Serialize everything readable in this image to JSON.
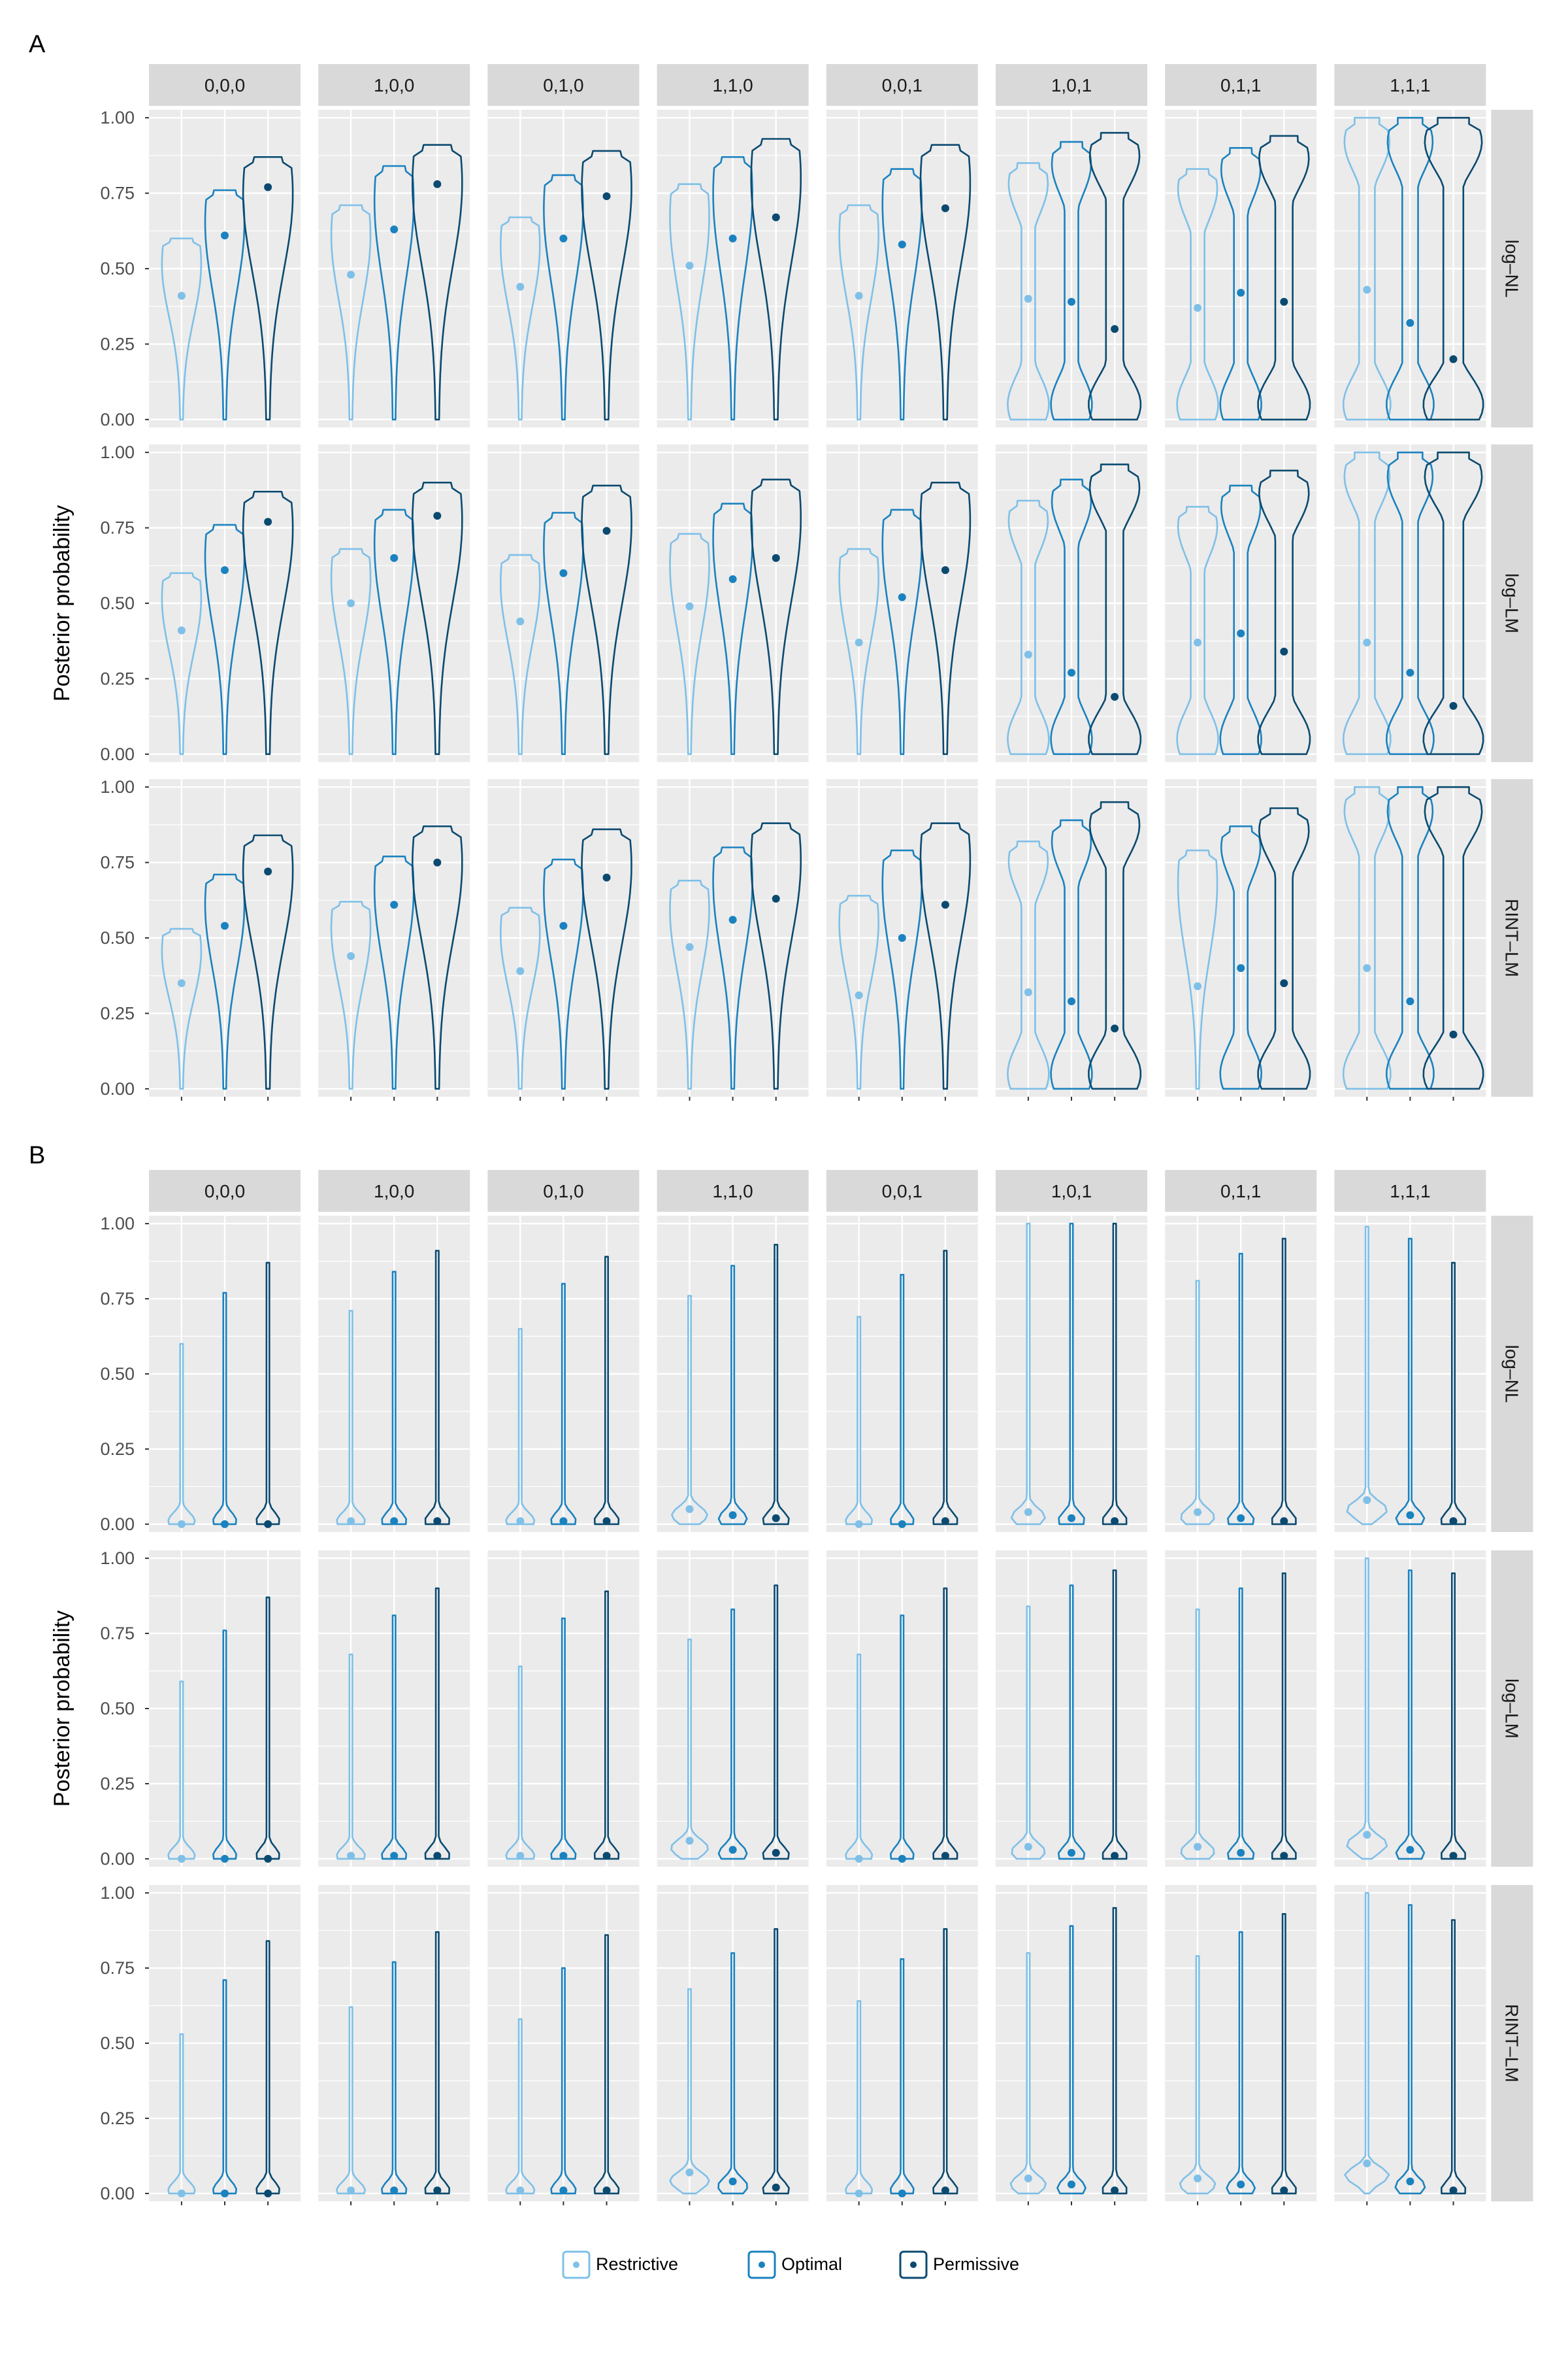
{
  "chart_data": [
    {
      "type": "violin",
      "panel": "A",
      "ylabel": "Posterior probability",
      "ylim": [
        0,
        1
      ],
      "yticks": [
        "0.00",
        "0.25",
        "0.50",
        "0.75",
        "1.00"
      ],
      "columns": [
        "0,0,0",
        "1,0,0",
        "0,1,0",
        "1,1,0",
        "0,0,1",
        "1,0,1",
        "0,1,1",
        "1,1,1"
      ],
      "rows": [
        "log–NL",
        "log–LM",
        "RINT–LM"
      ],
      "groups": [
        "Restrictive",
        "Optimal",
        "Permissive"
      ],
      "median": [
        [
          [
            0.41,
            0.61,
            0.77
          ],
          [
            0.48,
            0.63,
            0.78
          ],
          [
            0.44,
            0.6,
            0.74
          ],
          [
            0.51,
            0.6,
            0.67
          ],
          [
            0.41,
            0.58,
            0.7
          ],
          [
            0.4,
            0.39,
            0.3
          ],
          [
            0.37,
            0.42,
            0.39
          ],
          [
            0.43,
            0.32,
            0.2
          ]
        ],
        [
          [
            0.41,
            0.61,
            0.77
          ],
          [
            0.5,
            0.65,
            0.79
          ],
          [
            0.44,
            0.6,
            0.74
          ],
          [
            0.49,
            0.58,
            0.65
          ],
          [
            0.37,
            0.52,
            0.61
          ],
          [
            0.33,
            0.27,
            0.19
          ],
          [
            0.37,
            0.4,
            0.34
          ],
          [
            0.37,
            0.27,
            0.16
          ]
        ],
        [
          [
            0.35,
            0.54,
            0.72
          ],
          [
            0.44,
            0.61,
            0.75
          ],
          [
            0.39,
            0.54,
            0.7
          ],
          [
            0.47,
            0.56,
            0.63
          ],
          [
            0.31,
            0.5,
            0.61
          ],
          [
            0.32,
            0.29,
            0.2
          ],
          [
            0.34,
            0.4,
            0.35
          ],
          [
            0.4,
            0.29,
            0.18
          ]
        ]
      ],
      "max": [
        [
          [
            0.6,
            0.76,
            0.87
          ],
          [
            0.71,
            0.84,
            0.91
          ],
          [
            0.67,
            0.81,
            0.89
          ],
          [
            0.78,
            0.87,
            0.93
          ],
          [
            0.71,
            0.83,
            0.91
          ],
          [
            0.85,
            0.92,
            0.95
          ],
          [
            0.83,
            0.9,
            0.94
          ],
          [
            1.0,
            1.0,
            1.0
          ]
        ],
        [
          [
            0.6,
            0.76,
            0.87
          ],
          [
            0.68,
            0.81,
            0.9
          ],
          [
            0.66,
            0.8,
            0.89
          ],
          [
            0.73,
            0.83,
            0.91
          ],
          [
            0.68,
            0.81,
            0.9
          ],
          [
            0.84,
            0.91,
            0.96
          ],
          [
            0.82,
            0.89,
            0.94
          ],
          [
            1.0,
            1.0,
            1.0
          ]
        ],
        [
          [
            0.53,
            0.71,
            0.84
          ],
          [
            0.62,
            0.77,
            0.87
          ],
          [
            0.6,
            0.76,
            0.86
          ],
          [
            0.69,
            0.8,
            0.88
          ],
          [
            0.64,
            0.79,
            0.88
          ],
          [
            0.82,
            0.89,
            0.95
          ],
          [
            0.79,
            0.87,
            0.93
          ],
          [
            1.0,
            1.0,
            1.0
          ]
        ]
      ]
    },
    {
      "type": "violin",
      "panel": "B",
      "ylabel": "Posterior probability",
      "ylim": [
        0,
        1
      ],
      "yticks": [
        "0.00",
        "0.25",
        "0.50",
        "0.75",
        "1.00"
      ],
      "columns": [
        "0,0,0",
        "1,0,0",
        "0,1,0",
        "1,1,0",
        "0,0,1",
        "1,0,1",
        "0,1,1",
        "1,1,1"
      ],
      "rows": [
        "log–NL",
        "log–LM",
        "RINT–LM"
      ],
      "groups": [
        "Restrictive",
        "Optimal",
        "Permissive"
      ],
      "median": [
        [
          [
            0.0,
            0.0,
            0.0
          ],
          [
            0.01,
            0.01,
            0.01
          ],
          [
            0.01,
            0.01,
            0.01
          ],
          [
            0.05,
            0.03,
            0.02
          ],
          [
            0.0,
            0.0,
            0.01
          ],
          [
            0.04,
            0.02,
            0.01
          ],
          [
            0.04,
            0.02,
            0.01
          ],
          [
            0.08,
            0.03,
            0.01
          ]
        ],
        [
          [
            0.0,
            0.0,
            0.0
          ],
          [
            0.01,
            0.01,
            0.01
          ],
          [
            0.01,
            0.01,
            0.01
          ],
          [
            0.06,
            0.03,
            0.02
          ],
          [
            0.0,
            0.0,
            0.01
          ],
          [
            0.04,
            0.02,
            0.01
          ],
          [
            0.04,
            0.02,
            0.01
          ],
          [
            0.08,
            0.03,
            0.01
          ]
        ],
        [
          [
            0.0,
            0.0,
            0.0
          ],
          [
            0.01,
            0.01,
            0.01
          ],
          [
            0.01,
            0.01,
            0.01
          ],
          [
            0.07,
            0.04,
            0.02
          ],
          [
            0.0,
            0.0,
            0.01
          ],
          [
            0.05,
            0.03,
            0.01
          ],
          [
            0.05,
            0.03,
            0.01
          ],
          [
            0.1,
            0.04,
            0.01
          ]
        ]
      ],
      "max": [
        [
          [
            0.6,
            0.77,
            0.87
          ],
          [
            0.71,
            0.84,
            0.91
          ],
          [
            0.65,
            0.8,
            0.89
          ],
          [
            0.76,
            0.86,
            0.93
          ],
          [
            0.69,
            0.83,
            0.91
          ],
          [
            1.0,
            1.0,
            1.0
          ],
          [
            0.81,
            0.9,
            0.95
          ],
          [
            0.99,
            0.95,
            0.87
          ]
        ],
        [
          [
            0.59,
            0.76,
            0.87
          ],
          [
            0.68,
            0.81,
            0.9
          ],
          [
            0.64,
            0.8,
            0.89
          ],
          [
            0.73,
            0.83,
            0.91
          ],
          [
            0.68,
            0.81,
            0.9
          ],
          [
            0.84,
            0.91,
            0.96
          ],
          [
            0.83,
            0.9,
            0.95
          ],
          [
            1.0,
            0.96,
            0.95
          ]
        ],
        [
          [
            0.53,
            0.71,
            0.84
          ],
          [
            0.62,
            0.77,
            0.87
          ],
          [
            0.58,
            0.75,
            0.86
          ],
          [
            0.68,
            0.8,
            0.88
          ],
          [
            0.64,
            0.78,
            0.88
          ],
          [
            0.8,
            0.89,
            0.95
          ],
          [
            0.79,
            0.87,
            0.93
          ],
          [
            1.0,
            0.96,
            0.91
          ]
        ]
      ]
    }
  ],
  "legend": {
    "placement": "bottom",
    "items": [
      {
        "label": "Restrictive",
        "color": "#7fc0e8"
      },
      {
        "label": "Optimal",
        "color": "#1a82bf"
      },
      {
        "label": "Permissive",
        "color": "#0b4a70"
      }
    ]
  },
  "theme": {
    "panel_background": "#ebebeb",
    "grid_color": "#ffffff",
    "strip_background": "#d9d9d9"
  }
}
